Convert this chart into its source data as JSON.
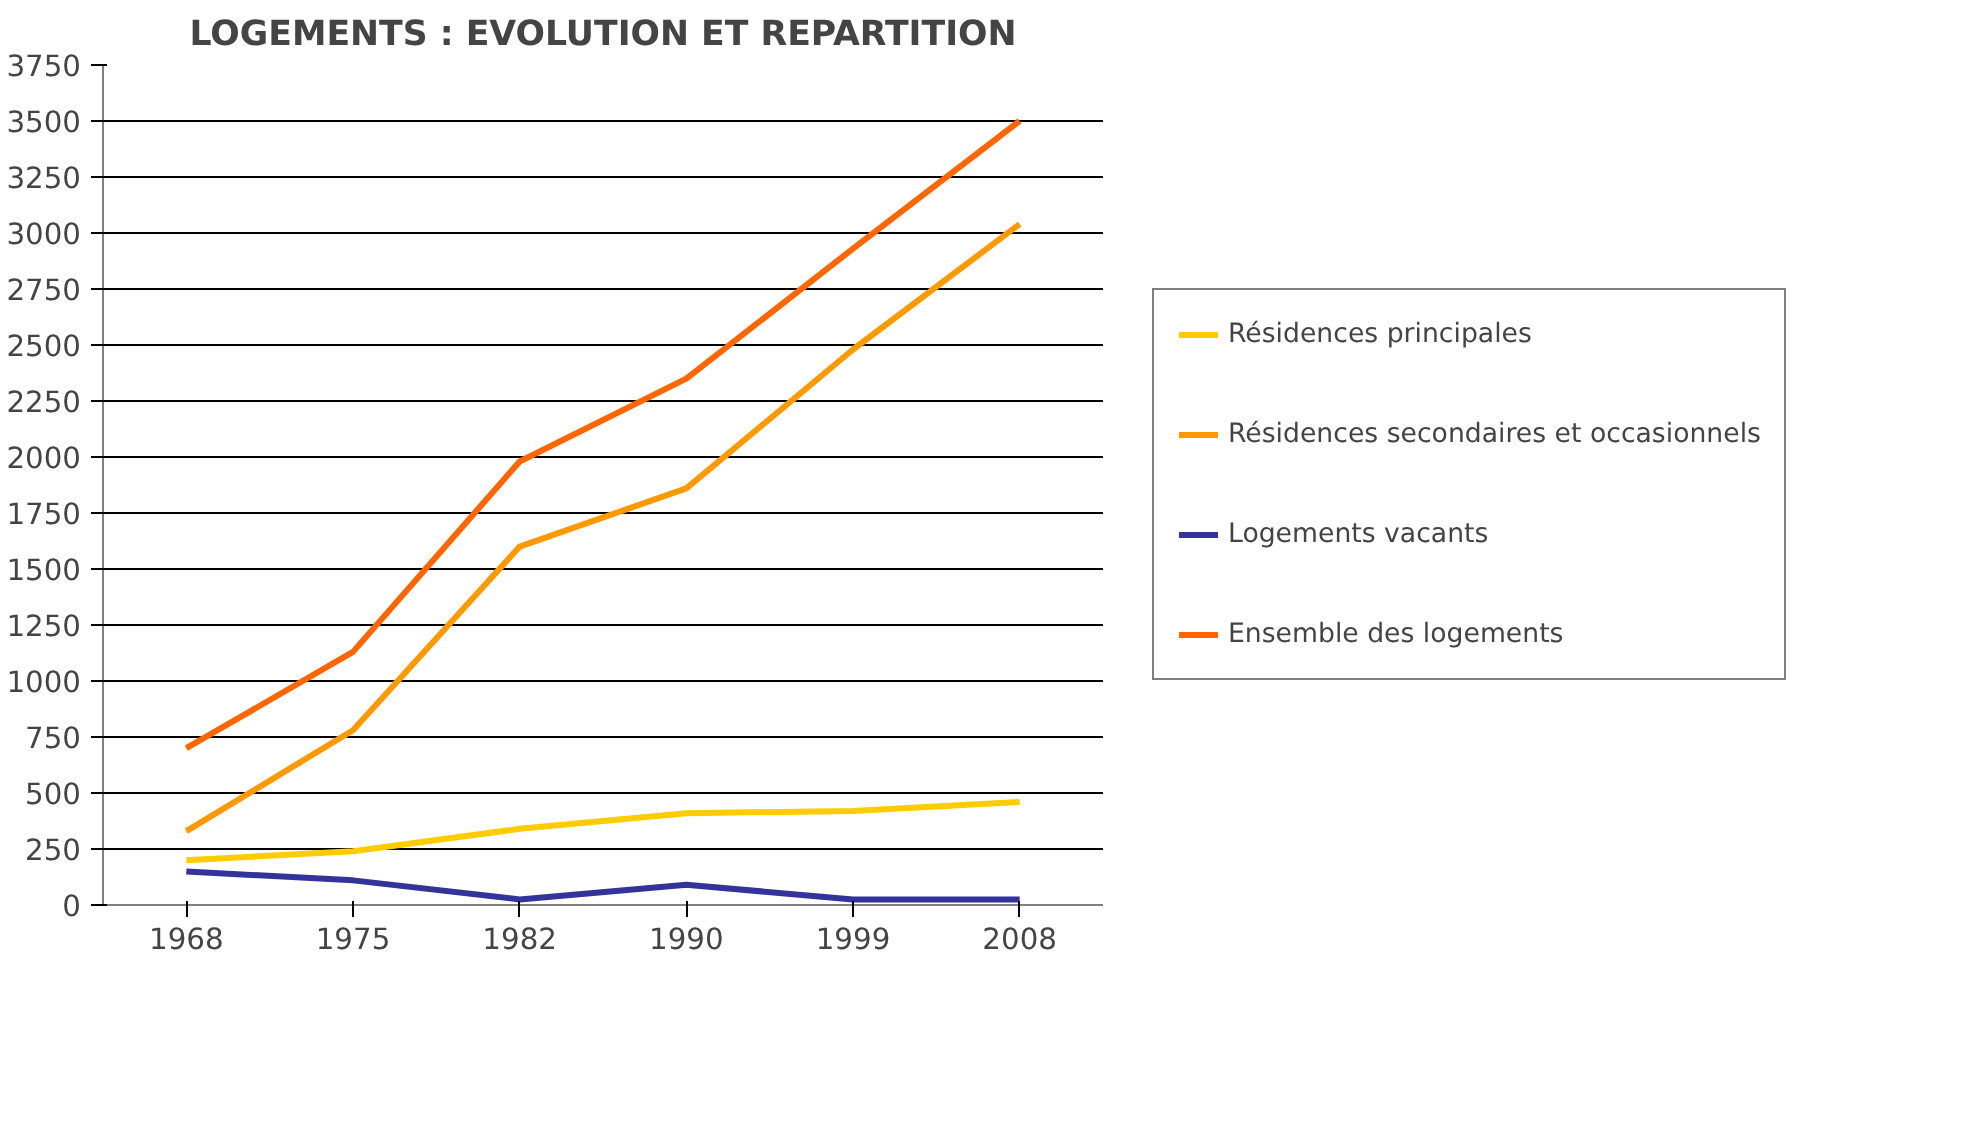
{
  "chart_data": {
    "type": "line",
    "title": "LOGEMENTS : EVOLUTION ET REPARTITION",
    "categories": [
      "1968",
      "1975",
      "1982",
      "1990",
      "1999",
      "2008"
    ],
    "series": [
      {
        "name": "Résidences principales",
        "color": "#ffcc00",
        "values": [
          200,
          240,
          340,
          410,
          420,
          460
        ]
      },
      {
        "name": "Résidences secondaires et occasionnels",
        "color": "#ff9900",
        "values": [
          330,
          780,
          1600,
          1860,
          2480,
          3040
        ]
      },
      {
        "name": "Logements vacants",
        "color": "#333399",
        "values": [
          150,
          110,
          25,
          90,
          25,
          25
        ]
      },
      {
        "name": "Ensemble des logements",
        "color": "#ff6600",
        "values": [
          700,
          1130,
          1980,
          2350,
          2930,
          3500
        ]
      }
    ],
    "ylim": [
      0,
      3750
    ],
    "yticks": [
      0,
      250,
      500,
      750,
      1000,
      1250,
      1500,
      1750,
      2000,
      2250,
      2500,
      2750,
      3000,
      3250,
      3500,
      3750
    ],
    "grid": "y",
    "legend": "right",
    "marker": "none",
    "line_style": "solid"
  }
}
